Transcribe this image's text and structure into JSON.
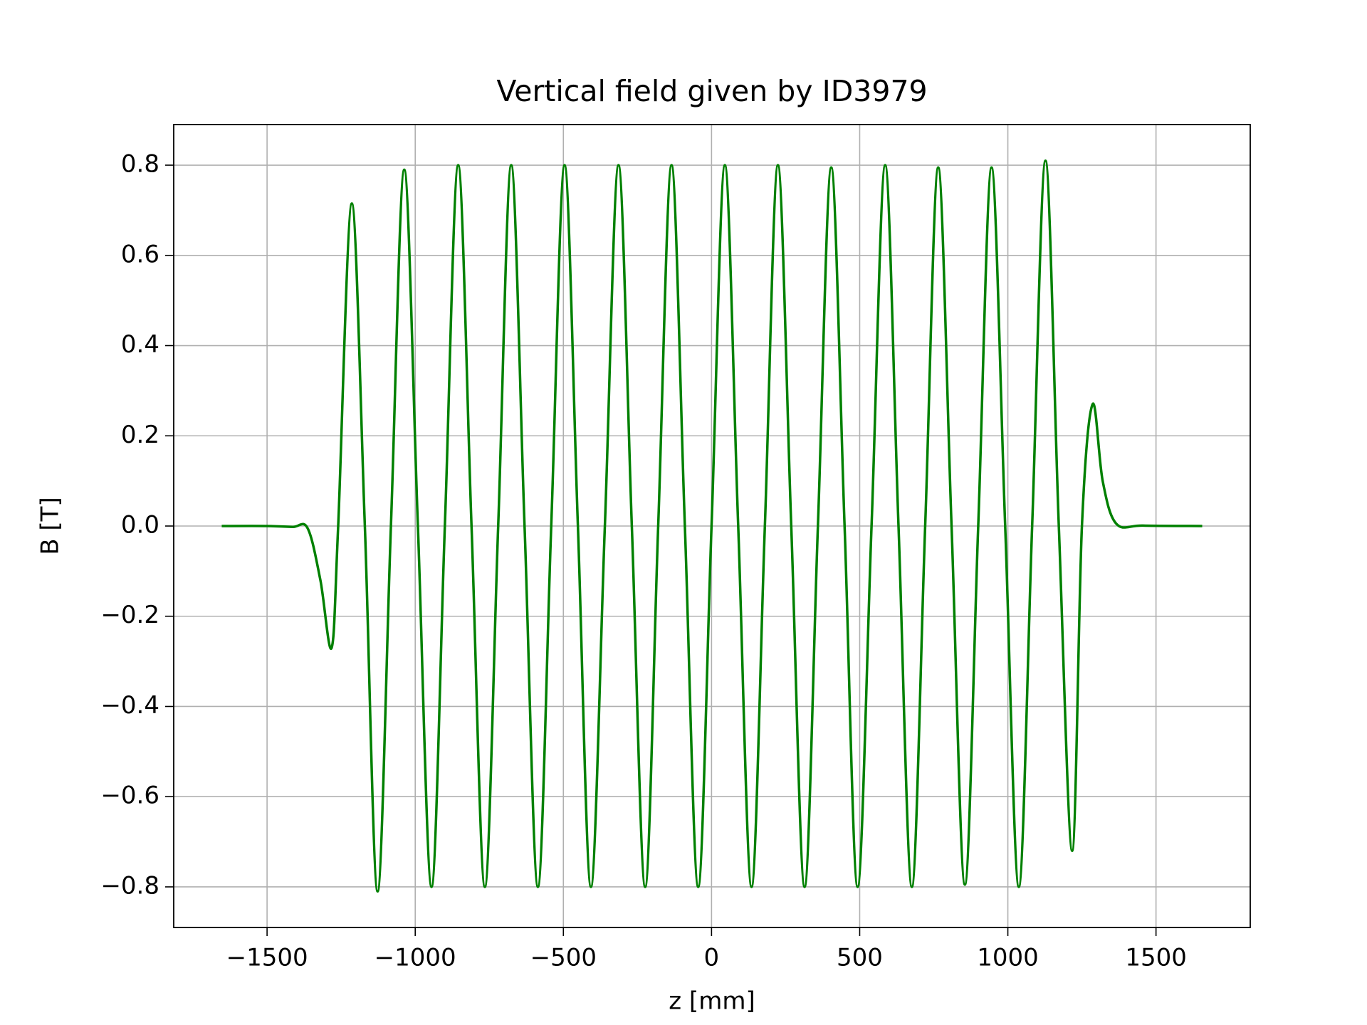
{
  "chart_data": {
    "type": "line",
    "title": "Vertical field given by ID3979",
    "xlabel": "z [mm]",
    "ylabel": "B [T]",
    "color": "#008000",
    "grid": true,
    "xlim": [
      -1815,
      1818
    ],
    "ylim": [
      -0.89,
      0.89
    ],
    "xticks": [
      {
        "value": -1500,
        "label": "−1500"
      },
      {
        "value": -1000,
        "label": "−1000"
      },
      {
        "value": -500,
        "label": "−500"
      },
      0,
      500,
      1000,
      1500
    ],
    "yticks": [
      {
        "value": -0.8,
        "label": "−0.8"
      },
      {
        "value": -0.6,
        "label": "−0.6"
      },
      {
        "value": -0.4,
        "label": "−0.4"
      },
      {
        "value": -0.2,
        "label": "−0.2"
      },
      {
        "value": 0,
        "label": "0.0"
      },
      0.2,
      0.4,
      0.6,
      0.8
    ],
    "x": [
      -1653,
      -1500,
      -1414,
      -1363,
      -1320,
      -1282,
      -1260,
      -1214,
      -1170,
      -1127,
      -1082,
      -1037,
      -991,
      -945,
      -900,
      -855,
      -810,
      -765,
      -720,
      -676,
      -631,
      -586,
      -541,
      -496,
      -451,
      -407,
      -360,
      -314,
      -269,
      -224,
      -180,
      -135,
      -90,
      -45,
      0,
      45,
      90,
      135,
      180,
      224,
      269,
      314,
      359,
      404,
      449,
      493,
      540,
      586,
      631,
      676,
      721,
      765,
      810,
      855,
      900,
      945,
      991,
      1037,
      1082,
      1127,
      1172,
      1217,
      1250,
      1286,
      1320,
      1366,
      1456,
      1656
    ],
    "values": [
      0,
      0,
      -0.002,
      -0.005,
      -0.12,
      -0.27,
      0,
      0.715,
      0,
      -0.81,
      0,
      0.79,
      0,
      -0.8,
      0,
      0.8,
      0,
      -0.8,
      0,
      0.8,
      0,
      -0.8,
      0,
      0.8,
      0,
      -0.8,
      0,
      0.8,
      0,
      -0.8,
      0,
      0.8,
      0,
      -0.8,
      0,
      0.8,
      0,
      -0.8,
      0,
      0.8,
      0,
      -0.8,
      0,
      0.795,
      0,
      -0.8,
      0,
      0.8,
      0,
      -0.8,
      0,
      0.795,
      0,
      -0.795,
      0,
      0.795,
      0,
      -0.8,
      0,
      0.81,
      0,
      -0.72,
      0,
      0.27,
      0.1,
      0.005,
      0.001,
      0
    ]
  }
}
